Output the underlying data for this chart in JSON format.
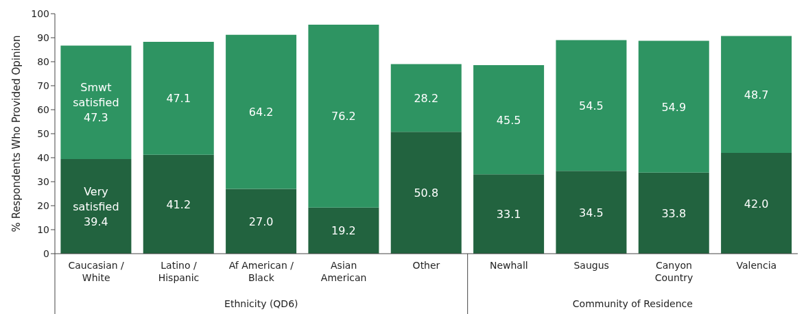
{
  "chart_data": {
    "type": "bar",
    "stacked": true,
    "ylabel": "% Respondents Who Provided Opinion",
    "categories": [
      "Caucasian / White",
      "Latino / Hispanic",
      "Af American / Black",
      "Asian American",
      "Other",
      "Newhall",
      "Saugus",
      "Canyon Country",
      "Valencia"
    ],
    "series": [
      {
        "name": "Very satisfied",
        "color": "#22633f",
        "values": [
          39.4,
          41.2,
          27.0,
          19.2,
          50.8,
          33.1,
          34.5,
          33.8,
          42.0
        ],
        "value_labels": [
          "39.4",
          "41.2",
          "27.0",
          "19.2",
          "50.8",
          "33.1",
          "34.5",
          "33.8",
          "42.0"
        ]
      },
      {
        "name": "Smwt satisfied",
        "color": "#2e9462",
        "values": [
          47.3,
          47.1,
          64.2,
          76.2,
          28.2,
          45.5,
          54.5,
          54.9,
          48.7
        ],
        "value_labels": [
          "47.3",
          "47.1",
          "64.2",
          "76.2",
          "28.2",
          "45.5",
          "54.5",
          "54.9",
          "48.7"
        ]
      }
    ],
    "ylim": [
      0,
      100
    ],
    "yticks": [
      0,
      10,
      20,
      30,
      40,
      50,
      60,
      70,
      80,
      90,
      100
    ],
    "grid": false,
    "legend": false,
    "annotations": [
      "Ethnicity (QD6)",
      "Community of Residence"
    ]
  }
}
